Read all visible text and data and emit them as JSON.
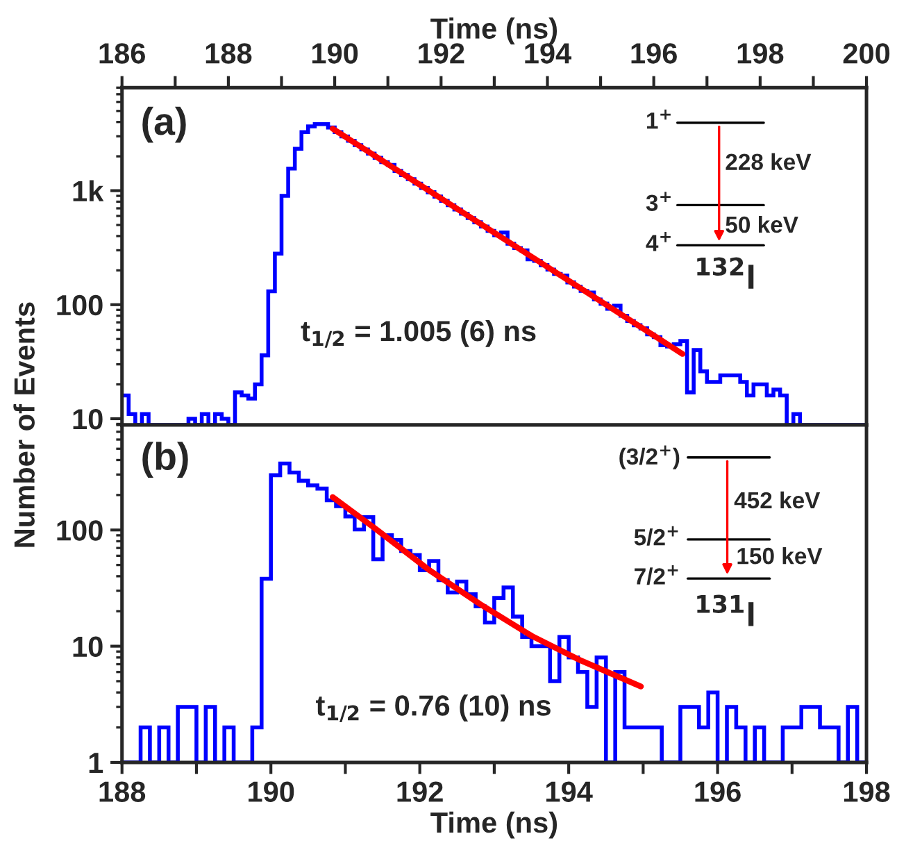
{
  "chart_data": [
    {
      "type": "histogram",
      "xlabel": "Time (ns)",
      "ylabel": "Number of Events",
      "log": "y",
      "grid": false,
      "legend": false,
      "xlim": [
        186,
        200
      ],
      "xticks": [
        186,
        {
          "value": 187,
          "label": null
        },
        188,
        {
          "value": 189,
          "label": null
        },
        190,
        {
          "value": 191,
          "label": null
        },
        192,
        {
          "value": 193,
          "label": null
        },
        194,
        {
          "value": 195,
          "label": null
        },
        196,
        {
          "value": 197,
          "label": null
        },
        198,
        {
          "value": 199,
          "label": null
        },
        200
      ],
      "ylim": [
        8.8,
        8000
      ],
      "yticks": [
        10,
        100,
        {
          "value": 1000,
          "label": "1k"
        }
      ],
      "annotations": [
        "(a)",
        "t$_{1/2}$ = 1.005 (6) ns",
        "1$^{+}$",
        "228 keV",
        "3$^{+}$",
        "50 keV",
        "4$^{+}$",
        "$^{132}$I"
      ],
      "series": [
        {
          "color": "#0000ff",
          "bins": [
            186,
            186.125,
            186.25,
            186.375,
            186.5,
            186.625,
            186.75,
            186.875,
            187,
            187.125,
            187.25,
            187.375,
            187.5,
            187.625,
            187.75,
            187.875,
            188,
            188.125,
            188.25,
            188.375,
            188.5,
            188.625,
            188.75,
            188.875,
            189,
            189.125,
            189.25,
            189.375,
            189.5,
            189.625,
            189.75,
            189.875,
            190,
            190.125,
            190.25,
            190.375,
            190.5,
            190.625,
            190.75,
            190.875,
            191,
            191.125,
            191.25,
            191.375,
            191.5,
            191.625,
            191.75,
            191.875,
            192,
            192.125,
            192.25,
            192.375,
            192.5,
            192.625,
            192.75,
            192.875,
            193,
            193.125,
            193.25,
            193.375,
            193.5,
            193.625,
            193.75,
            193.875,
            194,
            194.125,
            194.25,
            194.375,
            194.5,
            194.625,
            194.75,
            194.875,
            195,
            195.125,
            195.25,
            195.375,
            195.5,
            195.625,
            195.75,
            195.875,
            196,
            196.125,
            196.25,
            196.375,
            196.5,
            196.625,
            196.75,
            196.875,
            197,
            197.125,
            197.25,
            197.375,
            197.5,
            197.625,
            197.75,
            197.875,
            198,
            198.125,
            198.25,
            198.375,
            198.5,
            198.625,
            198.75,
            198.875,
            199,
            199.125,
            199.25,
            199.375,
            199.5,
            199.625,
            199.75,
            199.875,
            200
          ],
          "values": [
            16,
            11,
            null,
            11,
            null,
            null,
            null,
            null,
            null,
            null,
            10,
            null,
            11,
            null,
            11,
            10,
            null,
            17,
            16,
            15,
            20,
            36,
            131,
            280,
            900,
            1560,
            2330,
            3260,
            3660,
            3830,
            3830,
            3580,
            3260,
            2990,
            2740,
            2510,
            2300,
            2110,
            1940,
            1780,
            1680,
            1490,
            1370,
            1260,
            1150,
            1055,
            968,
            887,
            814,
            746,
            684,
            627,
            575,
            528,
            484,
            444,
            407,
            430,
            342,
            314,
            300,
            250,
            242,
            222,
            203,
            186,
            180,
            157,
            144,
            132,
            128,
            111,
            102,
            92,
            98,
            80,
            72,
            66,
            62,
            55,
            52,
            44,
            43,
            45,
            48,
            17,
            40,
            26,
            21,
            21,
            24,
            24,
            24,
            21,
            16,
            20,
            20,
            16,
            18,
            16,
            null,
            11,
            null,
            null,
            null,
            null,
            null,
            null,
            null,
            null,
            null,
            null
          ]
        },
        {
          "type": "line",
          "color": "#ff0000",
          "x": [
            189.96,
            196.54
          ],
          "values": [
            3500,
            37
          ]
        }
      ]
    },
    {
      "type": "histogram",
      "xlabel": "Time (ns)",
      "log": "y",
      "grid": false,
      "legend": false,
      "xlim": [
        188,
        198
      ],
      "xticks": [
        188,
        {
          "value": 189,
          "label": null
        },
        190,
        {
          "value": 191,
          "label": null
        },
        192,
        {
          "value": 193,
          "label": null
        },
        194,
        {
          "value": 195,
          "label": null
        },
        196,
        {
          "value": 197,
          "label": null
        },
        198
      ],
      "ylim": [
        1,
        800
      ],
      "yticks": [
        1,
        10,
        100
      ],
      "annotations": [
        "(b)",
        "t$_{1/2}$ = 0.76 (10) ns",
        "(3/2$^{+}$)",
        "452 keV",
        "5/2$^{+}$",
        "150 keV",
        "7/2$^{+}$",
        "$^{131}$I"
      ],
      "series": [
        {
          "color": "#0000ff",
          "bins": [
            188,
            188.125,
            188.25,
            188.375,
            188.5,
            188.625,
            188.75,
            188.875,
            189,
            189.125,
            189.25,
            189.375,
            189.5,
            189.625,
            189.75,
            189.875,
            190,
            190.125,
            190.25,
            190.375,
            190.5,
            190.625,
            190.75,
            190.875,
            191,
            191.125,
            191.25,
            191.375,
            191.5,
            191.625,
            191.75,
            191.875,
            192,
            192.125,
            192.25,
            192.375,
            192.5,
            192.625,
            192.75,
            192.875,
            193,
            193.125,
            193.25,
            193.375,
            193.5,
            193.625,
            193.75,
            193.875,
            194,
            194.125,
            194.25,
            194.375,
            194.5,
            194.625,
            194.75,
            194.875,
            195,
            195.125,
            195.25,
            195.375,
            195.5,
            195.625,
            195.75,
            195.875,
            196,
            196.125,
            196.25,
            196.375,
            196.5,
            196.625,
            196.75,
            196.875,
            197,
            197.125,
            197.25,
            197.375,
            197.5,
            197.625,
            197.75,
            197.875,
            198
          ],
          "values": [
            null,
            null,
            2,
            null,
            2,
            null,
            3,
            3,
            null,
            3,
            null,
            2,
            null,
            null,
            2,
            38,
            296,
            373,
            312,
            265,
            242,
            227,
            180,
            160,
            131,
            101,
            129,
            56,
            90,
            82,
            66,
            61,
            45,
            54,
            37,
            29,
            36,
            28,
            22,
            16,
            26,
            32,
            18,
            12,
            10,
            10,
            5,
            12,
            8,
            6,
            3,
            8,
            null,
            6,
            2,
            2,
            2,
            2,
            null,
            null,
            3,
            3,
            2,
            4,
            null,
            3,
            2,
            null,
            2,
            null,
            null,
            2,
            2,
            3,
            3,
            2,
            2,
            null,
            3,
            null
          ]
        },
        {
          "type": "line",
          "color": "#ff0000",
          "x": [
            190.83,
            191.41,
            192.11,
            192.81,
            193.51,
            194.13,
            194.97
          ],
          "values": [
            192,
            102,
            46,
            23,
            12.2,
            7.7,
            4.5
          ]
        }
      ]
    }
  ]
}
